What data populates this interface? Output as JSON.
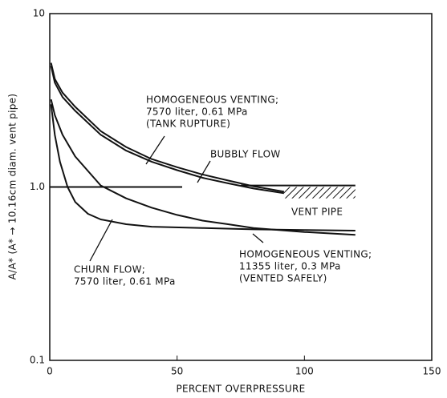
{
  "chart_data": {
    "type": "line",
    "xlabel": "PERCENT OVERPRESSURE",
    "ylabel": "A/A* (A* → 10.16cm diam. vent pipe)",
    "xlim": [
      0,
      150
    ],
    "xticks": [
      0,
      50,
      100,
      150
    ],
    "ylim": [
      0.1,
      10
    ],
    "yticks": [
      0.1,
      {
        "value": 1,
        "label": "1.0"
      },
      10
    ],
    "ylog": true,
    "color": "#111",
    "series": [
      {
        "x": [
          0.5,
          2,
          5,
          10,
          20,
          30,
          40,
          50,
          60,
          70,
          80,
          92
        ],
        "values": [
          5.2,
          4.2,
          3.5,
          2.9,
          2.1,
          1.7,
          1.45,
          1.3,
          1.18,
          1.09,
          1.01,
          0.94
        ]
      },
      {
        "x": [
          0.5,
          2,
          5,
          10,
          20,
          30,
          40,
          50,
          60,
          70,
          80,
          92
        ],
        "values": [
          5.0,
          4.0,
          3.3,
          2.75,
          2.0,
          1.62,
          1.4,
          1.25,
          1.13,
          1.05,
          0.98,
          0.92
        ]
      },
      {
        "x": [
          0,
          52
        ],
        "values": [
          1,
          1
        ]
      },
      {
        "x": [
          0.5,
          2,
          5,
          10,
          20,
          30,
          40,
          50,
          60,
          70,
          80,
          100,
          120
        ],
        "values": [
          3.2,
          2.6,
          2.0,
          1.5,
          1.02,
          0.86,
          0.76,
          0.69,
          0.64,
          0.61,
          0.58,
          0.55,
          0.53
        ]
      },
      {
        "x": [
          0.5,
          2,
          4,
          7,
          10,
          15,
          20,
          30,
          40,
          60,
          80,
          100,
          120
        ],
        "values": [
          3.0,
          2.0,
          1.4,
          1.0,
          0.82,
          0.7,
          0.65,
          0.61,
          0.59,
          0.58,
          0.57,
          0.565,
          0.56
        ]
      },
      {
        "x": [
          75,
          120
        ],
        "values": [
          1.02,
          1.02
        ]
      }
    ],
    "regions": [
      {
        "x": [
          92,
          120
        ],
        "y": [
          0.86,
          1.0
        ]
      }
    ],
    "annotations": [
      {
        "lines": [
          "HOMOGENEOUS VENTING;",
          "7570 liter, 0.61 MPa",
          "(TANK RUPTURE)"
        ]
      },
      {
        "lines": [
          "BUBBLY FLOW"
        ]
      },
      {
        "lines": [
          "VENT PIPE"
        ]
      },
      {
        "lines": [
          "CHURN FLOW;",
          "7570 liter, 0.61 MPa"
        ]
      },
      {
        "lines": [
          "HOMOGENEOUS VENTING;",
          "11355 liter, 0.3 MPa",
          "(VENTED SAFELY)"
        ]
      }
    ]
  }
}
